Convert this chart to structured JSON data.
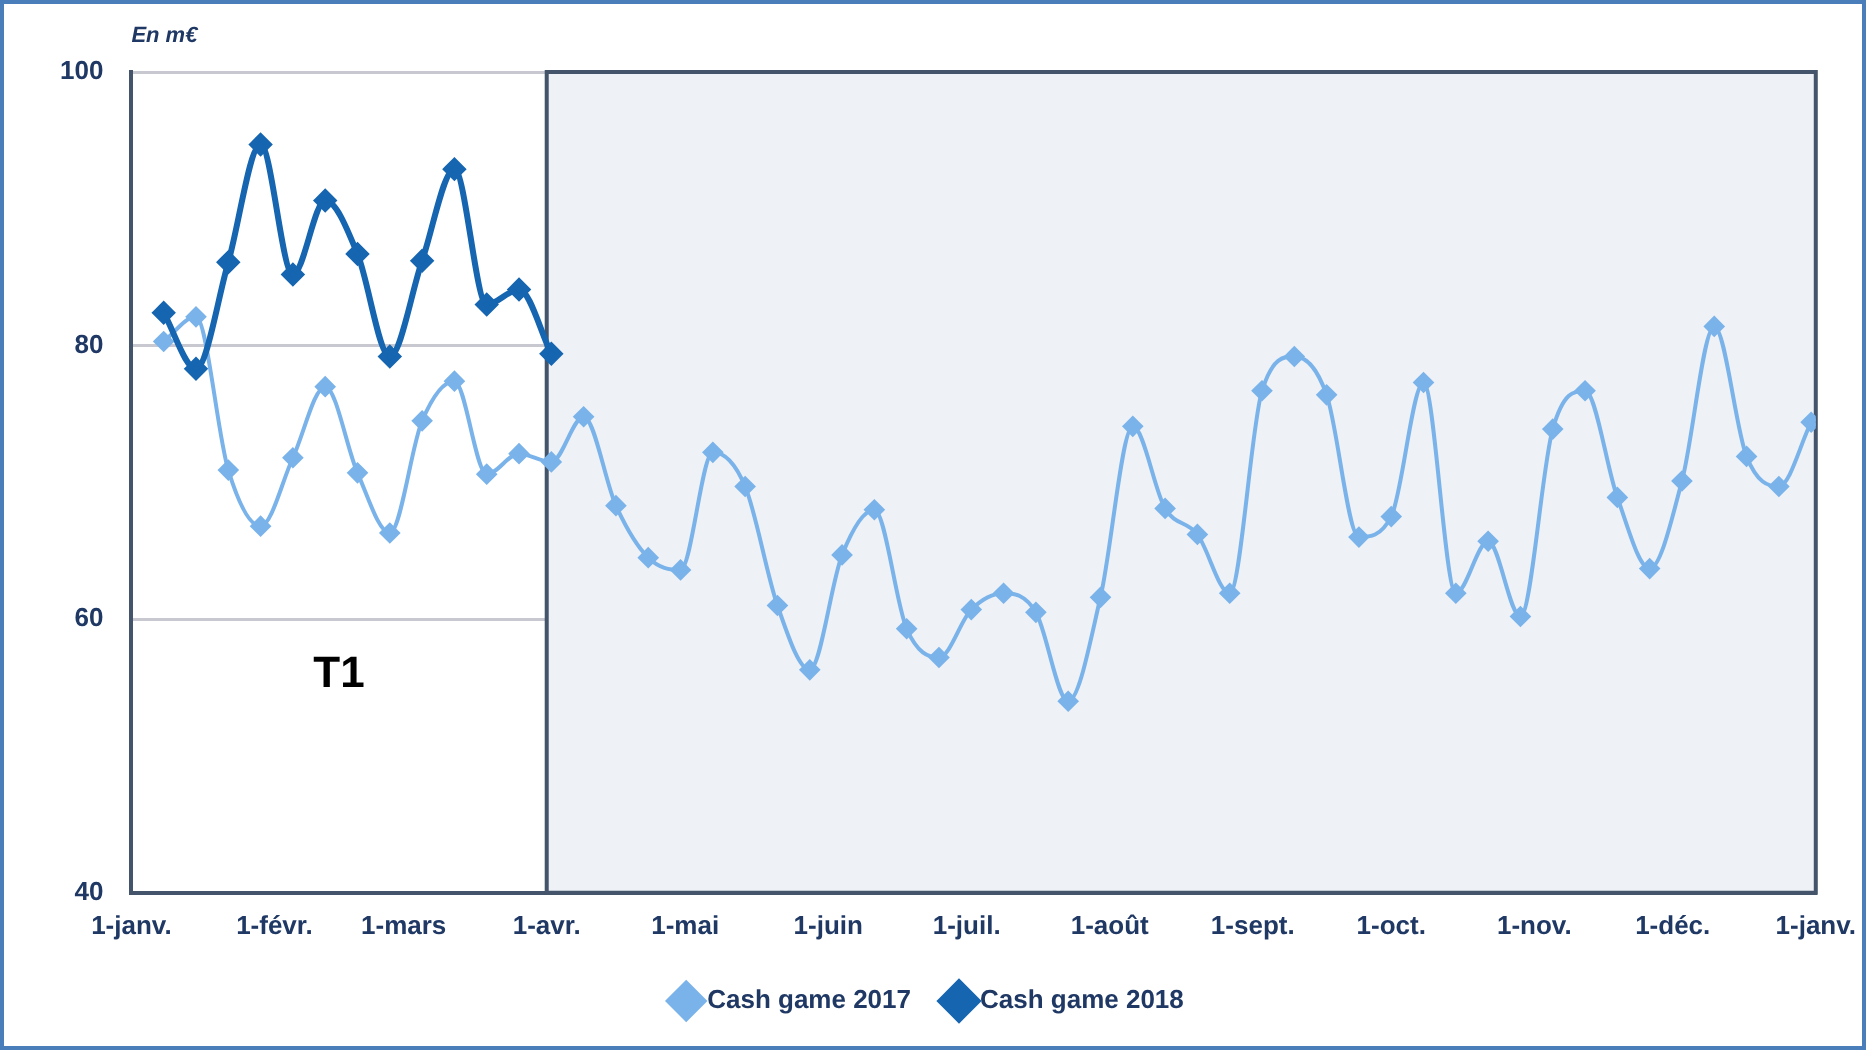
{
  "chart_data": {
    "type": "line",
    "ylabel": "En m€",
    "x": [
      "2017-01-08",
      "2017-01-15",
      "2017-01-22",
      "2017-01-29",
      "2017-02-05",
      "2017-02-12",
      "2017-02-19",
      "2017-02-26",
      "2017-03-05",
      "2017-03-12",
      "2017-03-19",
      "2017-03-26",
      "2017-04-02",
      "2017-04-09",
      "2017-04-16",
      "2017-04-23",
      "2017-04-30",
      "2017-05-07",
      "2017-05-14",
      "2017-05-21",
      "2017-05-28",
      "2017-06-04",
      "2017-06-11",
      "2017-06-18",
      "2017-06-25",
      "2017-07-02",
      "2017-07-09",
      "2017-07-16",
      "2017-07-23",
      "2017-07-30",
      "2017-08-06",
      "2017-08-13",
      "2017-08-20",
      "2017-08-27",
      "2017-09-03",
      "2017-09-10",
      "2017-09-17",
      "2017-09-24",
      "2017-10-01",
      "2017-10-08",
      "2017-10-15",
      "2017-10-22",
      "2017-10-29",
      "2017-11-05",
      "2017-11-12",
      "2017-11-19",
      "2017-11-26",
      "2017-12-03",
      "2017-12-10",
      "2017-12-17",
      "2017-12-24",
      "2017-12-31"
    ],
    "series": [
      {
        "name": "Cash game 2017",
        "color": "#7ab3ea",
        "values": [
          80.3,
          82.1,
          70.9,
          66.8,
          71.8,
          77.0,
          70.7,
          66.3,
          74.5,
          77.4,
          70.6,
          72.1,
          71.5,
          74.8,
          68.3,
          64.5,
          63.6,
          72.2,
          69.7,
          61.0,
          56.3,
          64.7,
          68.0,
          59.3,
          57.2,
          60.7,
          61.9,
          60.5,
          54.0,
          61.6,
          74.1,
          68.1,
          66.2,
          61.9,
          76.7,
          79.2,
          76.4,
          66.0,
          67.5,
          77.3,
          61.9,
          65.7,
          60.2,
          73.9,
          76.7,
          68.9,
          63.7,
          70.1,
          81.4,
          71.9,
          69.7,
          74.4
        ]
      },
      {
        "name": "Cash game 2018",
        "color": "#1565b0",
        "values": [
          82.4,
          78.3,
          86.1,
          94.7,
          85.2,
          90.6,
          86.7,
          79.2,
          86.2,
          92.9,
          83.0,
          84.1,
          79.4,
          null,
          null,
          null,
          null,
          null,
          null,
          null,
          null,
          null,
          null,
          null,
          null,
          null,
          null,
          null,
          null,
          null,
          null,
          null,
          null,
          null,
          null,
          null,
          null,
          null,
          null,
          null,
          null,
          null,
          null,
          null,
          null,
          null,
          null,
          null,
          null,
          null,
          null,
          null
        ]
      }
    ],
    "xlim": [
      "2017-01-01",
      "2018-01-01"
    ],
    "xticks": [
      {
        "value": "2017-01-01",
        "label": "1-janv."
      },
      {
        "value": "2017-02-01",
        "label": "1-févr."
      },
      {
        "value": "2017-03-01",
        "label": "1-mars"
      },
      {
        "value": "2017-04-01",
        "label": "1-avr."
      },
      {
        "value": "2017-05-01",
        "label": "1-mai"
      },
      {
        "value": "2017-06-01",
        "label": "1-juin"
      },
      {
        "value": "2017-07-01",
        "label": "1-juil."
      },
      {
        "value": "2017-08-01",
        "label": "1-août"
      },
      {
        "value": "2017-09-01",
        "label": "1-sept."
      },
      {
        "value": "2017-10-01",
        "label": "1-oct."
      },
      {
        "value": "2017-11-01",
        "label": "1-nov."
      },
      {
        "value": "2017-12-01",
        "label": "1-déc."
      },
      {
        "value": "2018-01-01",
        "label": "1-janv."
      }
    ],
    "ylim": [
      40,
      100
    ],
    "yticks": [
      40,
      60,
      80,
      100
    ],
    "bands": [
      {
        "axis": "x",
        "from": "2017-04-01",
        "to": "2018-01-01",
        "color": "#eef1f6"
      }
    ],
    "annotations": [
      "T1"
    ],
    "grid": "y",
    "legend": "bottom",
    "marker": "diamond",
    "line_style": "solid"
  }
}
